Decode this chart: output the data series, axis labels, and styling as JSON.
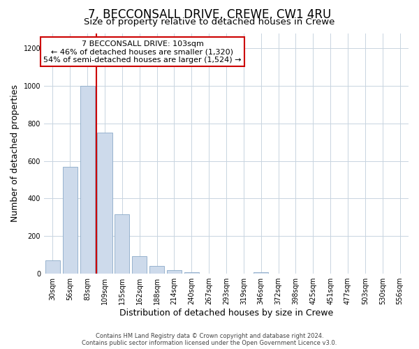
{
  "title": "7, BECCONSALL DRIVE, CREWE, CW1 4RU",
  "subtitle": "Size of property relative to detached houses in Crewe",
  "xlabel": "Distribution of detached houses by size in Crewe",
  "ylabel": "Number of detached properties",
  "bar_labels": [
    "30sqm",
    "56sqm",
    "83sqm",
    "109sqm",
    "135sqm",
    "162sqm",
    "188sqm",
    "214sqm",
    "240sqm",
    "267sqm",
    "293sqm",
    "319sqm",
    "346sqm",
    "372sqm",
    "398sqm",
    "425sqm",
    "451sqm",
    "477sqm",
    "503sqm",
    "530sqm",
    "556sqm"
  ],
  "bar_values": [
    70,
    570,
    1000,
    750,
    315,
    95,
    40,
    20,
    10,
    0,
    0,
    0,
    10,
    0,
    0,
    0,
    0,
    0,
    0,
    0,
    0
  ],
  "bar_color": "#cddaeb",
  "bar_edge_color": "#8baac8",
  "vline_color": "#cc0000",
  "vline_position": 2.5,
  "annotation_title": "7 BECCONSALL DRIVE: 103sqm",
  "annotation_line1": "← 46% of detached houses are smaller (1,320)",
  "annotation_line2": "54% of semi-detached houses are larger (1,524) →",
  "annotation_box_facecolor": "#ffffff",
  "annotation_box_edgecolor": "#cc0000",
  "ylim": [
    0,
    1280
  ],
  "yticks": [
    0,
    200,
    400,
    600,
    800,
    1000,
    1200
  ],
  "footer_line1": "Contains HM Land Registry data © Crown copyright and database right 2024.",
  "footer_line2": "Contains public sector information licensed under the Open Government Licence v3.0.",
  "background_color": "#ffffff",
  "grid_color": "#c8d4e0",
  "title_fontsize": 12,
  "subtitle_fontsize": 9.5,
  "axis_label_fontsize": 9,
  "tick_fontsize": 7,
  "annotation_fontsize": 8,
  "footer_fontsize": 6
}
